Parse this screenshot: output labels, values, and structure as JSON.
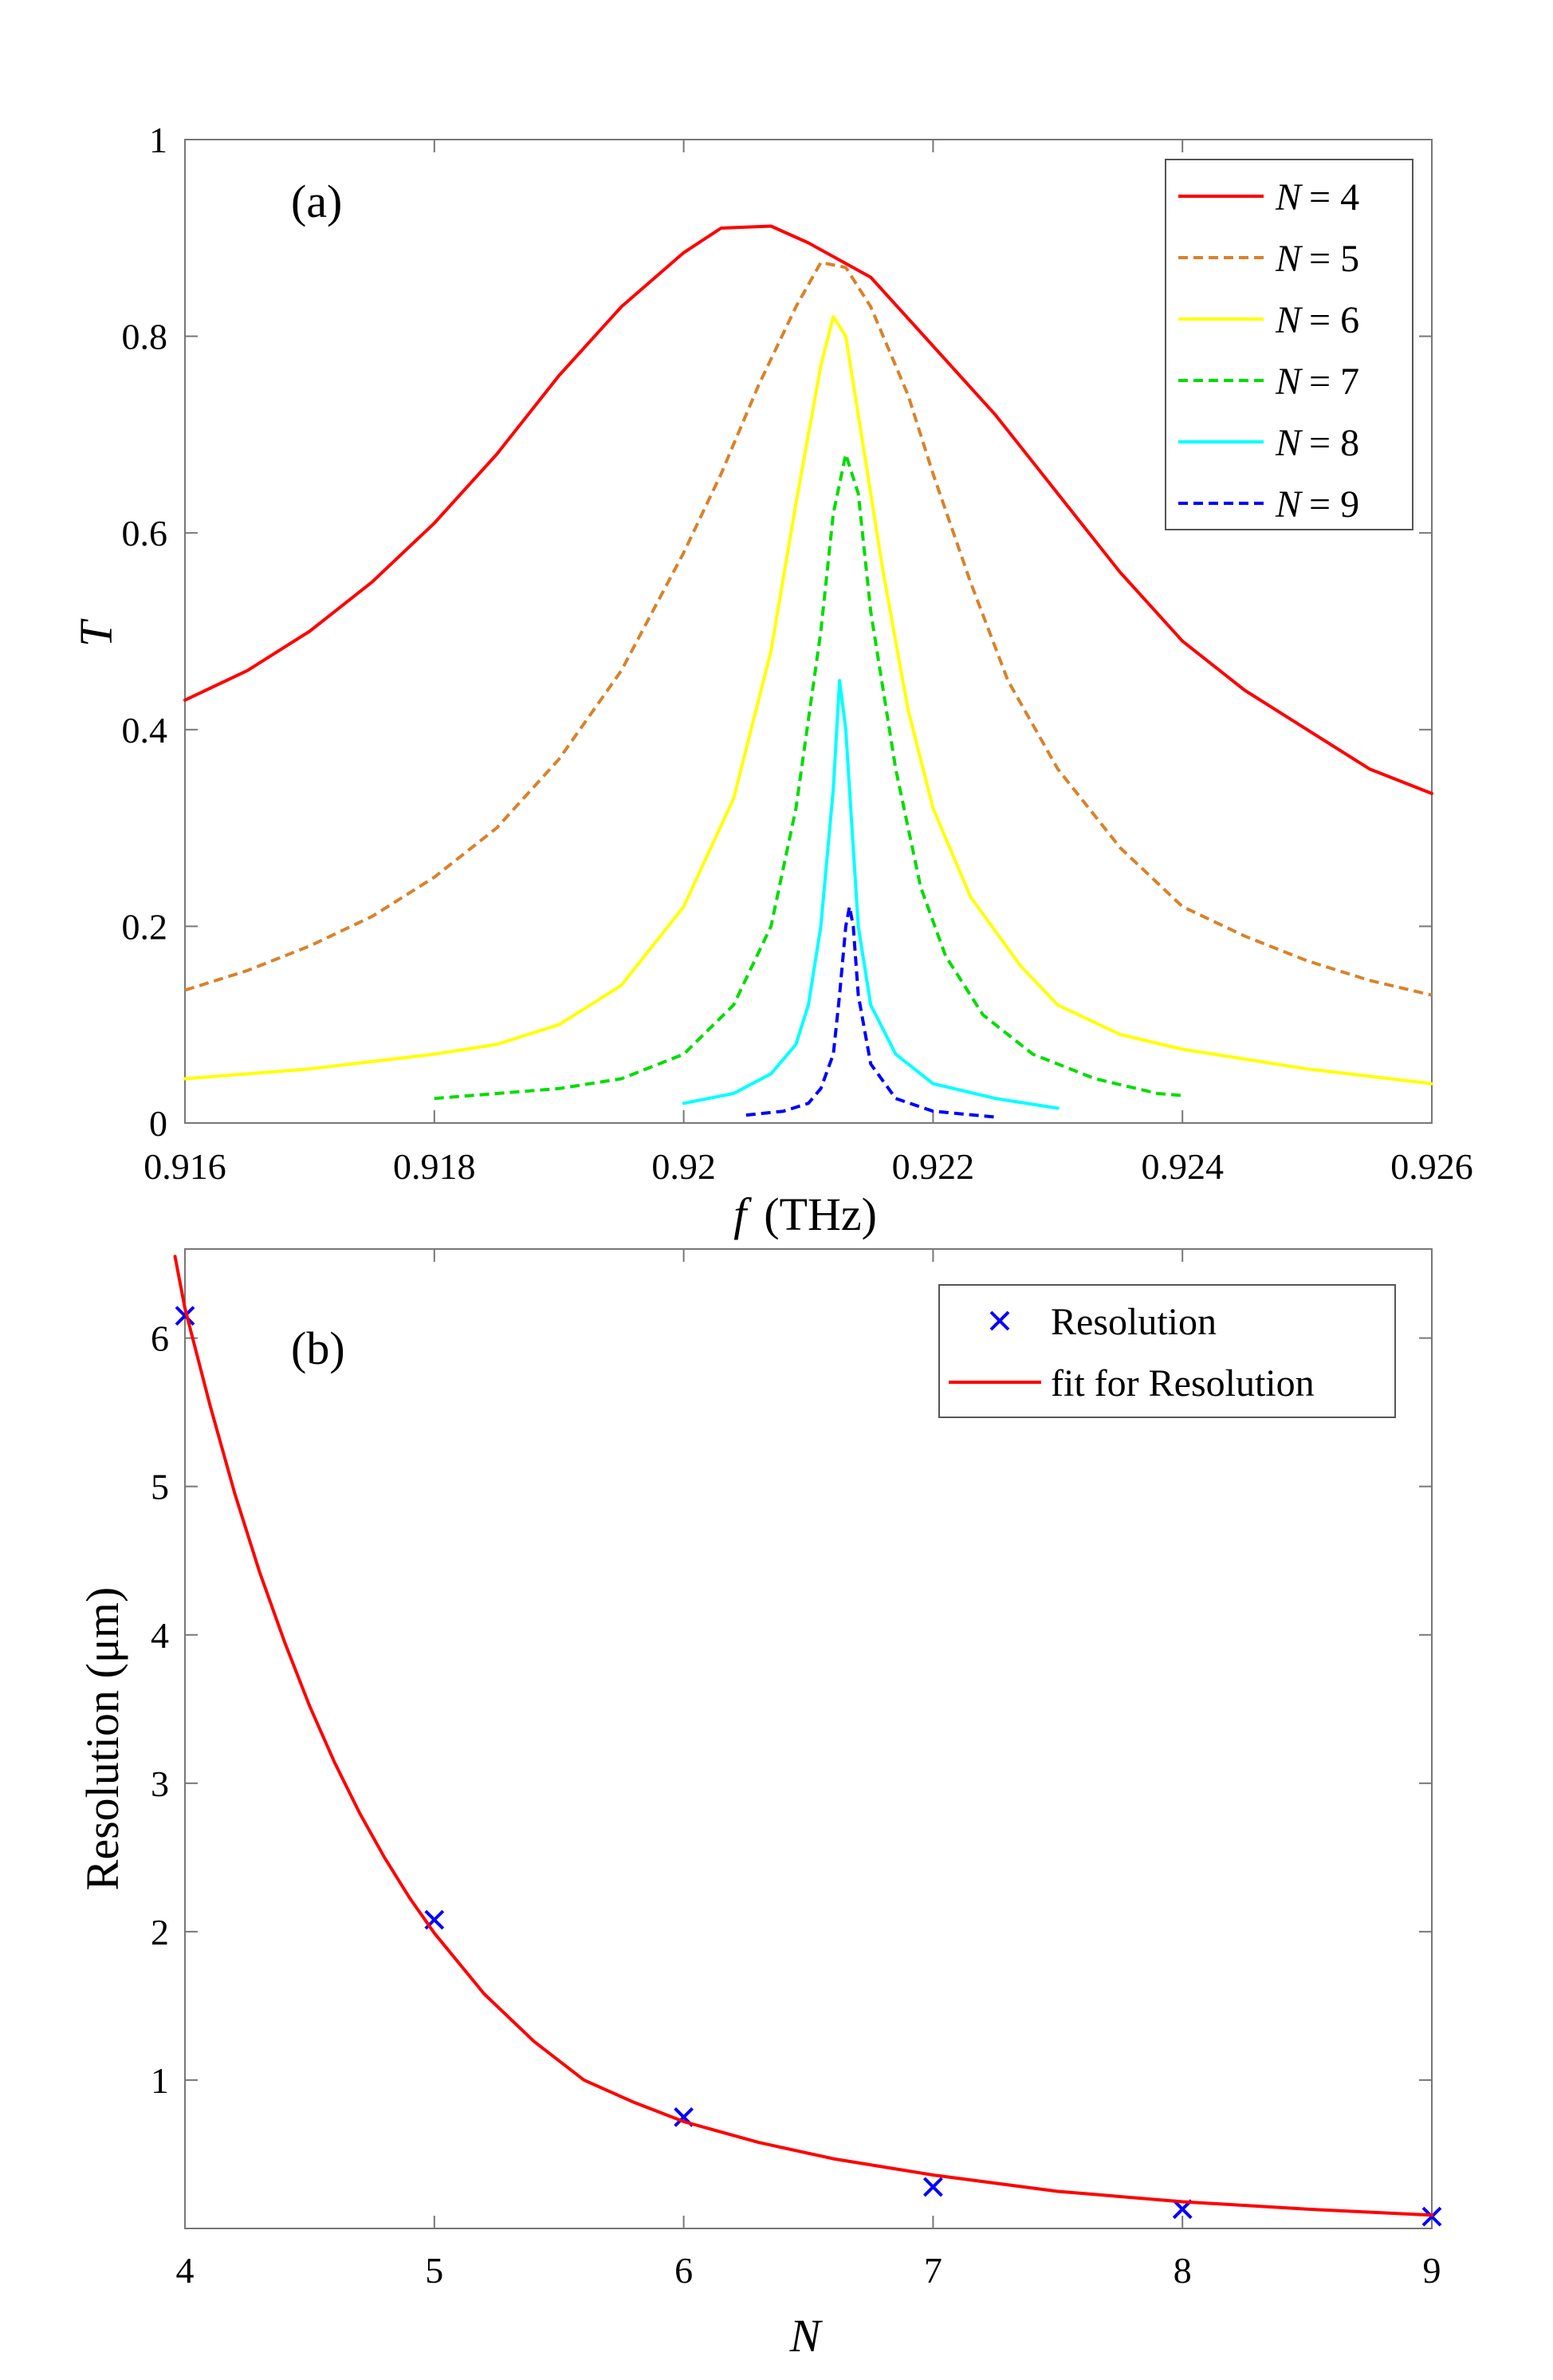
{
  "chart_data": [
    {
      "type": "line",
      "panel_label": "(a)",
      "xlabel_var": "f",
      "xlabel_unit": "(THz)",
      "ylabel": "T",
      "xlim": [
        0.916,
        0.926
      ],
      "ylim": [
        0,
        1
      ],
      "x_ticks": [
        0.916,
        0.918,
        0.92,
        0.922,
        0.924,
        0.926
      ],
      "x_tick_labels": [
        "0.916",
        "0.918",
        "0.92",
        "0.922",
        "0.924",
        "0.926"
      ],
      "y_ticks": [
        0,
        0.2,
        0.4,
        0.6,
        0.8,
        1
      ],
      "y_tick_labels": [
        "0",
        "0.2",
        "0.4",
        "0.6",
        "0.8",
        "1"
      ],
      "grid": false,
      "legend_position": "top-right",
      "series": [
        {
          "name": "N = 4",
          "legend_var": "N",
          "legend_value": "= 4",
          "color": "#ff0000",
          "dash": "solid",
          "points": [
            [
              0.916,
              0.43
            ],
            [
              0.9165,
              0.46
            ],
            [
              0.917,
              0.5
            ],
            [
              0.9175,
              0.55
            ],
            [
              0.918,
              0.61
            ],
            [
              0.9185,
              0.68
            ],
            [
              0.919,
              0.76
            ],
            [
              0.9195,
              0.83
            ],
            [
              0.92,
              0.885
            ],
            [
              0.9203,
              0.91
            ],
            [
              0.9207,
              0.912
            ],
            [
              0.921,
              0.895
            ],
            [
              0.9215,
              0.86
            ],
            [
              0.922,
              0.79
            ],
            [
              0.9225,
              0.72
            ],
            [
              0.923,
              0.64
            ],
            [
              0.9235,
              0.56
            ],
            [
              0.924,
              0.49
            ],
            [
              0.9245,
              0.44
            ],
            [
              0.925,
              0.4
            ],
            [
              0.9255,
              0.36
            ],
            [
              0.926,
              0.335
            ]
          ]
        },
        {
          "name": "N = 5",
          "legend_var": "N",
          "legend_value": "= 5",
          "color": "#d9822b",
          "dash": "dashed",
          "points": [
            [
              0.916,
              0.135
            ],
            [
              0.9165,
              0.155
            ],
            [
              0.917,
              0.18
            ],
            [
              0.9175,
              0.21
            ],
            [
              0.918,
              0.25
            ],
            [
              0.9185,
              0.3
            ],
            [
              0.919,
              0.37
            ],
            [
              0.9195,
              0.46
            ],
            [
              0.92,
              0.58
            ],
            [
              0.9203,
              0.66
            ],
            [
              0.9206,
              0.75
            ],
            [
              0.9209,
              0.83
            ],
            [
              0.9211,
              0.875
            ],
            [
              0.9213,
              0.87
            ],
            [
              0.9215,
              0.83
            ],
            [
              0.9218,
              0.74
            ],
            [
              0.922,
              0.66
            ],
            [
              0.9223,
              0.55
            ],
            [
              0.9226,
              0.45
            ],
            [
              0.923,
              0.36
            ],
            [
              0.9235,
              0.28
            ],
            [
              0.924,
              0.22
            ],
            [
              0.9245,
              0.19
            ],
            [
              0.925,
              0.165
            ],
            [
              0.9255,
              0.145
            ],
            [
              0.926,
              0.13
            ]
          ]
        },
        {
          "name": "N = 6",
          "legend_var": "N",
          "legend_value": "= 6",
          "color": "#ffff00",
          "dash": "solid",
          "points": [
            [
              0.916,
              0.045
            ],
            [
              0.917,
              0.055
            ],
            [
              0.918,
              0.07
            ],
            [
              0.9185,
              0.08
            ],
            [
              0.919,
              0.1
            ],
            [
              0.9195,
              0.14
            ],
            [
              0.92,
              0.22
            ],
            [
              0.9204,
              0.33
            ],
            [
              0.9207,
              0.48
            ],
            [
              0.9209,
              0.63
            ],
            [
              0.9211,
              0.77
            ],
            [
              0.9212,
              0.82
            ],
            [
              0.9213,
              0.8
            ],
            [
              0.9214,
              0.72
            ],
            [
              0.9216,
              0.56
            ],
            [
              0.9218,
              0.42
            ],
            [
              0.922,
              0.32
            ],
            [
              0.9223,
              0.23
            ],
            [
              0.9227,
              0.16
            ],
            [
              0.923,
              0.12
            ],
            [
              0.9235,
              0.09
            ],
            [
              0.924,
              0.075
            ],
            [
              0.925,
              0.055
            ],
            [
              0.926,
              0.04
            ]
          ]
        },
        {
          "name": "N = 7",
          "legend_var": "N",
          "legend_value": "= 7",
          "color": "#00dd00",
          "dash": "dashed",
          "points": [
            [
              0.918,
              0.025
            ],
            [
              0.9185,
              0.03
            ],
            [
              0.919,
              0.035
            ],
            [
              0.9195,
              0.045
            ],
            [
              0.92,
              0.07
            ],
            [
              0.9204,
              0.12
            ],
            [
              0.9207,
              0.2
            ],
            [
              0.9209,
              0.32
            ],
            [
              0.9211,
              0.5
            ],
            [
              0.9212,
              0.62
            ],
            [
              0.9213,
              0.68
            ],
            [
              0.9214,
              0.64
            ],
            [
              0.9215,
              0.52
            ],
            [
              0.9217,
              0.36
            ],
            [
              0.9219,
              0.24
            ],
            [
              0.9221,
              0.17
            ],
            [
              0.9224,
              0.11
            ],
            [
              0.9228,
              0.07
            ],
            [
              0.9233,
              0.045
            ],
            [
              0.9238,
              0.03
            ],
            [
              0.924,
              0.028
            ]
          ]
        },
        {
          "name": "N = 8",
          "legend_var": "N",
          "legend_value": "= 8",
          "color": "#00ffff",
          "dash": "solid",
          "points": [
            [
              0.92,
              0.02
            ],
            [
              0.9204,
              0.03
            ],
            [
              0.9207,
              0.05
            ],
            [
              0.9209,
              0.08
            ],
            [
              0.921,
              0.12
            ],
            [
              0.9211,
              0.2
            ],
            [
              0.9212,
              0.34
            ],
            [
              0.92125,
              0.45
            ],
            [
              0.9213,
              0.4
            ],
            [
              0.92135,
              0.3
            ],
            [
              0.9214,
              0.2
            ],
            [
              0.9215,
              0.12
            ],
            [
              0.9217,
              0.07
            ],
            [
              0.922,
              0.04
            ],
            [
              0.9225,
              0.025
            ],
            [
              0.923,
              0.015
            ]
          ]
        },
        {
          "name": "N = 9",
          "legend_var": "N",
          "legend_value": "= 9",
          "color": "#0000ff",
          "dash": "dashed",
          "points": [
            [
              0.9205,
              0.008
            ],
            [
              0.9208,
              0.012
            ],
            [
              0.921,
              0.02
            ],
            [
              0.9211,
              0.035
            ],
            [
              0.9212,
              0.07
            ],
            [
              0.92125,
              0.13
            ],
            [
              0.9213,
              0.2
            ],
            [
              0.92133,
              0.22
            ],
            [
              0.92136,
              0.2
            ],
            [
              0.9214,
              0.13
            ],
            [
              0.9215,
              0.06
            ],
            [
              0.9217,
              0.025
            ],
            [
              0.922,
              0.012
            ],
            [
              0.9225,
              0.006
            ]
          ]
        }
      ]
    },
    {
      "type": "scatter",
      "panel_label": "(b)",
      "xlabel": "N",
      "ylabel": "Resolution (μm)",
      "xlim": [
        4,
        9
      ],
      "ylim": [
        0,
        6.6
      ],
      "x_ticks": [
        4,
        5,
        6,
        7,
        8,
        9
      ],
      "x_tick_labels": [
        "4",
        "5",
        "6",
        "7",
        "8",
        "9"
      ],
      "y_ticks": [
        1,
        2,
        3,
        4,
        5,
        6
      ],
      "y_tick_labels": [
        "1",
        "2",
        "3",
        "4",
        "5",
        "6"
      ],
      "grid": false,
      "legend_position": "top-right",
      "series": [
        {
          "name": "Resolution",
          "marker": "x",
          "color": "#0000ff",
          "points": [
            [
              4,
              6.15
            ],
            [
              5,
              2.08
            ],
            [
              6,
              0.75
            ],
            [
              7,
              0.28
            ],
            [
              8,
              0.13
            ],
            [
              9,
              0.08
            ]
          ]
        },
        {
          "name": "fit for Resolution",
          "line": "solid",
          "color": "#ff0000",
          "points": [
            [
              3.96,
              6.55
            ],
            [
              4,
              6.2
            ],
            [
              4.1,
              5.55
            ],
            [
              4.2,
              4.95
            ],
            [
              4.3,
              4.42
            ],
            [
              4.4,
              3.95
            ],
            [
              4.5,
              3.52
            ],
            [
              4.6,
              3.14
            ],
            [
              4.7,
              2.8
            ],
            [
              4.8,
              2.5
            ],
            [
              4.9,
              2.23
            ],
            [
              5,
              1.99
            ],
            [
              5.2,
              1.58
            ],
            [
              5.4,
              1.26
            ],
            [
              5.6,
              1.0
            ],
            [
              5.8,
              0.85
            ],
            [
              6,
              0.72
            ],
            [
              6.3,
              0.58
            ],
            [
              6.6,
              0.47
            ],
            [
              7,
              0.36
            ],
            [
              7.5,
              0.25
            ],
            [
              8,
              0.18
            ],
            [
              8.5,
              0.13
            ],
            [
              9,
              0.09
            ]
          ]
        }
      ]
    }
  ]
}
